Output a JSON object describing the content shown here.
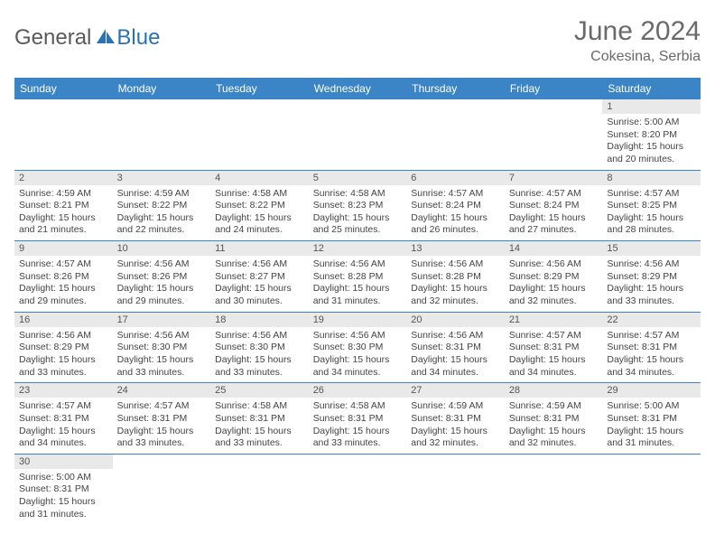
{
  "logo": {
    "text1": "General",
    "text2": "Blue"
  },
  "title": {
    "month": "June 2024",
    "location": "Cokesina, Serbia"
  },
  "colors": {
    "header_bg": "#3b85c6",
    "header_fg": "#ffffff",
    "daynum_bg": "#e9e9e9",
    "border": "#3b85c6",
    "logo_gray": "#5a5a5a",
    "logo_blue": "#2a72b5"
  },
  "weekdays": [
    "Sunday",
    "Monday",
    "Tuesday",
    "Wednesday",
    "Thursday",
    "Friday",
    "Saturday"
  ],
  "weeks": [
    [
      null,
      null,
      null,
      null,
      null,
      null,
      {
        "n": "1",
        "sr": "Sunrise: 5:00 AM",
        "ss": "Sunset: 8:20 PM",
        "d1": "Daylight: 15 hours",
        "d2": "and 20 minutes."
      }
    ],
    [
      {
        "n": "2",
        "sr": "Sunrise: 4:59 AM",
        "ss": "Sunset: 8:21 PM",
        "d1": "Daylight: 15 hours",
        "d2": "and 21 minutes."
      },
      {
        "n": "3",
        "sr": "Sunrise: 4:59 AM",
        "ss": "Sunset: 8:22 PM",
        "d1": "Daylight: 15 hours",
        "d2": "and 22 minutes."
      },
      {
        "n": "4",
        "sr": "Sunrise: 4:58 AM",
        "ss": "Sunset: 8:22 PM",
        "d1": "Daylight: 15 hours",
        "d2": "and 24 minutes."
      },
      {
        "n": "5",
        "sr": "Sunrise: 4:58 AM",
        "ss": "Sunset: 8:23 PM",
        "d1": "Daylight: 15 hours",
        "d2": "and 25 minutes."
      },
      {
        "n": "6",
        "sr": "Sunrise: 4:57 AM",
        "ss": "Sunset: 8:24 PM",
        "d1": "Daylight: 15 hours",
        "d2": "and 26 minutes."
      },
      {
        "n": "7",
        "sr": "Sunrise: 4:57 AM",
        "ss": "Sunset: 8:24 PM",
        "d1": "Daylight: 15 hours",
        "d2": "and 27 minutes."
      },
      {
        "n": "8",
        "sr": "Sunrise: 4:57 AM",
        "ss": "Sunset: 8:25 PM",
        "d1": "Daylight: 15 hours",
        "d2": "and 28 minutes."
      }
    ],
    [
      {
        "n": "9",
        "sr": "Sunrise: 4:57 AM",
        "ss": "Sunset: 8:26 PM",
        "d1": "Daylight: 15 hours",
        "d2": "and 29 minutes."
      },
      {
        "n": "10",
        "sr": "Sunrise: 4:56 AM",
        "ss": "Sunset: 8:26 PM",
        "d1": "Daylight: 15 hours",
        "d2": "and 29 minutes."
      },
      {
        "n": "11",
        "sr": "Sunrise: 4:56 AM",
        "ss": "Sunset: 8:27 PM",
        "d1": "Daylight: 15 hours",
        "d2": "and 30 minutes."
      },
      {
        "n": "12",
        "sr": "Sunrise: 4:56 AM",
        "ss": "Sunset: 8:28 PM",
        "d1": "Daylight: 15 hours",
        "d2": "and 31 minutes."
      },
      {
        "n": "13",
        "sr": "Sunrise: 4:56 AM",
        "ss": "Sunset: 8:28 PM",
        "d1": "Daylight: 15 hours",
        "d2": "and 32 minutes."
      },
      {
        "n": "14",
        "sr": "Sunrise: 4:56 AM",
        "ss": "Sunset: 8:29 PM",
        "d1": "Daylight: 15 hours",
        "d2": "and 32 minutes."
      },
      {
        "n": "15",
        "sr": "Sunrise: 4:56 AM",
        "ss": "Sunset: 8:29 PM",
        "d1": "Daylight: 15 hours",
        "d2": "and 33 minutes."
      }
    ],
    [
      {
        "n": "16",
        "sr": "Sunrise: 4:56 AM",
        "ss": "Sunset: 8:29 PM",
        "d1": "Daylight: 15 hours",
        "d2": "and 33 minutes."
      },
      {
        "n": "17",
        "sr": "Sunrise: 4:56 AM",
        "ss": "Sunset: 8:30 PM",
        "d1": "Daylight: 15 hours",
        "d2": "and 33 minutes."
      },
      {
        "n": "18",
        "sr": "Sunrise: 4:56 AM",
        "ss": "Sunset: 8:30 PM",
        "d1": "Daylight: 15 hours",
        "d2": "and 33 minutes."
      },
      {
        "n": "19",
        "sr": "Sunrise: 4:56 AM",
        "ss": "Sunset: 8:30 PM",
        "d1": "Daylight: 15 hours",
        "d2": "and 34 minutes."
      },
      {
        "n": "20",
        "sr": "Sunrise: 4:56 AM",
        "ss": "Sunset: 8:31 PM",
        "d1": "Daylight: 15 hours",
        "d2": "and 34 minutes."
      },
      {
        "n": "21",
        "sr": "Sunrise: 4:57 AM",
        "ss": "Sunset: 8:31 PM",
        "d1": "Daylight: 15 hours",
        "d2": "and 34 minutes."
      },
      {
        "n": "22",
        "sr": "Sunrise: 4:57 AM",
        "ss": "Sunset: 8:31 PM",
        "d1": "Daylight: 15 hours",
        "d2": "and 34 minutes."
      }
    ],
    [
      {
        "n": "23",
        "sr": "Sunrise: 4:57 AM",
        "ss": "Sunset: 8:31 PM",
        "d1": "Daylight: 15 hours",
        "d2": "and 34 minutes."
      },
      {
        "n": "24",
        "sr": "Sunrise: 4:57 AM",
        "ss": "Sunset: 8:31 PM",
        "d1": "Daylight: 15 hours",
        "d2": "and 33 minutes."
      },
      {
        "n": "25",
        "sr": "Sunrise: 4:58 AM",
        "ss": "Sunset: 8:31 PM",
        "d1": "Daylight: 15 hours",
        "d2": "and 33 minutes."
      },
      {
        "n": "26",
        "sr": "Sunrise: 4:58 AM",
        "ss": "Sunset: 8:31 PM",
        "d1": "Daylight: 15 hours",
        "d2": "and 33 minutes."
      },
      {
        "n": "27",
        "sr": "Sunrise: 4:59 AM",
        "ss": "Sunset: 8:31 PM",
        "d1": "Daylight: 15 hours",
        "d2": "and 32 minutes."
      },
      {
        "n": "28",
        "sr": "Sunrise: 4:59 AM",
        "ss": "Sunset: 8:31 PM",
        "d1": "Daylight: 15 hours",
        "d2": "and 32 minutes."
      },
      {
        "n": "29",
        "sr": "Sunrise: 5:00 AM",
        "ss": "Sunset: 8:31 PM",
        "d1": "Daylight: 15 hours",
        "d2": "and 31 minutes."
      }
    ],
    [
      {
        "n": "30",
        "sr": "Sunrise: 5:00 AM",
        "ss": "Sunset: 8:31 PM",
        "d1": "Daylight: 15 hours",
        "d2": "and 31 minutes."
      },
      null,
      null,
      null,
      null,
      null,
      null
    ]
  ]
}
